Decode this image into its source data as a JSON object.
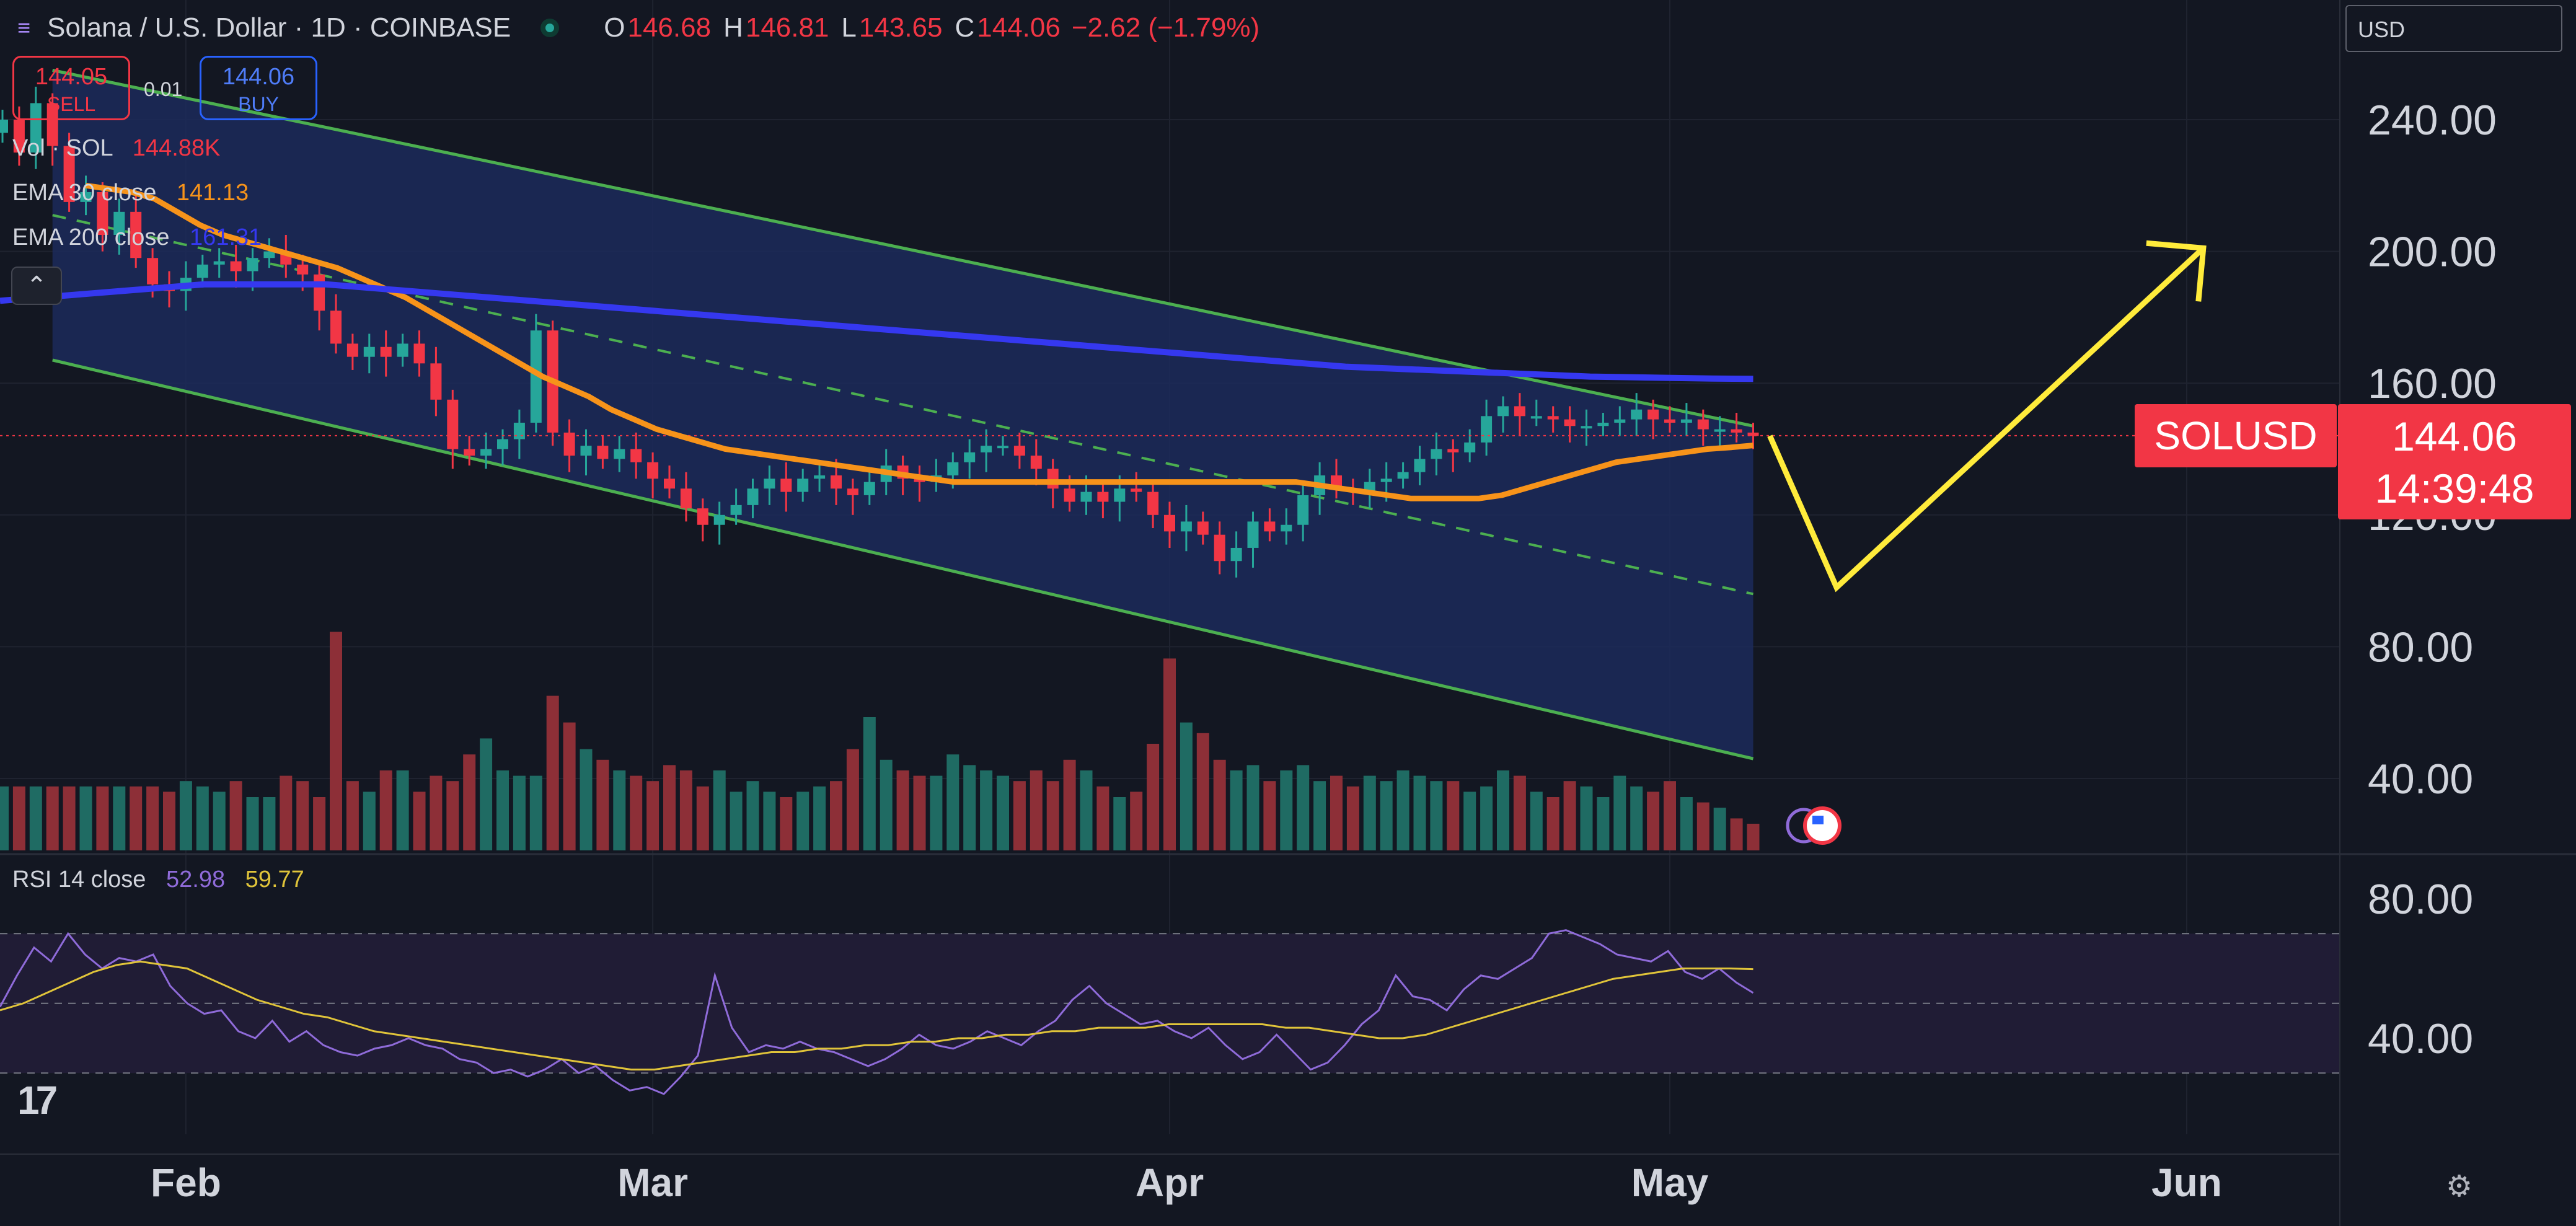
{
  "header": {
    "title": "Solana / U.S. Dollar · 1D · COINBASE",
    "symbol_icon": "solana-logo-icon",
    "o_label": "O",
    "o_value": "146.68",
    "h_label": "H",
    "h_value": "146.81",
    "l_label": "L",
    "l_value": "143.65",
    "c_label": "C",
    "c_value": "144.06",
    "change": "−2.62 (−1.79%)"
  },
  "trade": {
    "sell_price": "144.05",
    "sell_label": "SELL",
    "spread": "0.01",
    "buy_price": "144.06",
    "buy_label": "BUY"
  },
  "legends": {
    "vol_label": "Vol · SOL",
    "vol_value": "144.88K",
    "ema30_label": "EMA 30 close",
    "ema30_value": "141.13",
    "ema200_label": "EMA 200 close",
    "ema200_value": "161.31",
    "rsi_label": "RSI 14 close",
    "rsi_value": "52.98",
    "rsi_ma_value": "59.77"
  },
  "currency": "USD",
  "symbol_tag": "SOLUSD",
  "price_tag": {
    "price": "144.06",
    "countdown": "14:39:48"
  },
  "colors": {
    "background": "#131722",
    "up": "#26a69a",
    "down": "#f23645",
    "ema30": "#f7931a",
    "ema200": "#3538f0",
    "channel": "#4caf50",
    "channel_fill": "#1c2a5a",
    "projection": "#ffeb3b",
    "rsi": "#8f6bd9",
    "rsi_ma": "#e0c43a"
  },
  "chart_data": [
    {
      "type": "candlestick",
      "title": "Solana / U.S. Dollar · 1D · COINBASE",
      "x_start": "2025-01-21",
      "x_end": "2025-05-07",
      "xticks": [
        "Feb",
        "Mar",
        "Apr",
        "May",
        "Jun"
      ],
      "y_ticks": [
        "240.00",
        "200.00",
        "160.00",
        "120.00",
        "80.00",
        "40.00"
      ],
      "ylim": [
        20,
        260
      ],
      "closes": [
        240,
        230,
        245,
        232,
        215,
        218,
        205,
        212,
        198,
        190,
        188,
        192,
        196,
        197,
        194,
        198,
        200,
        196,
        193,
        182,
        172,
        168,
        171,
        168,
        172,
        166,
        155,
        140,
        138,
        140,
        143,
        148,
        176,
        145,
        138,
        141,
        137,
        140,
        136,
        131,
        128,
        122,
        117,
        120,
        123,
        128,
        131,
        127,
        131,
        132,
        128,
        126,
        130,
        135,
        131,
        130,
        132,
        136,
        139,
        141,
        141,
        138,
        134,
        128,
        124,
        127,
        124,
        128,
        127,
        120,
        115,
        118,
        114,
        106,
        110,
        118,
        115,
        117,
        126,
        132,
        128,
        127,
        130,
        131,
        133,
        137,
        140,
        139,
        142,
        150,
        153,
        150,
        150,
        149,
        147,
        147,
        148,
        149,
        152,
        149,
        148,
        149,
        146,
        146,
        145,
        144
      ],
      "ema30": [
        220,
        219,
        218,
        216,
        212,
        208,
        205,
        203,
        201,
        199,
        197,
        195,
        192,
        189,
        186,
        182,
        178,
        174,
        170,
        166,
        162,
        159,
        156,
        152,
        149,
        146,
        144,
        142,
        140,
        139,
        138,
        137,
        136,
        135,
        134,
        133,
        132,
        131,
        130,
        130,
        130,
        130,
        130,
        130,
        130,
        130,
        130,
        130,
        130,
        130,
        130,
        130,
        130,
        130,
        129,
        128,
        127,
        126,
        125,
        125,
        125,
        125,
        126,
        128,
        130,
        132,
        134,
        136,
        137,
        138,
        139,
        140,
        140.5,
        141.1
      ],
      "ema200": [
        185,
        186,
        187,
        188,
        189,
        190,
        190,
        190,
        190,
        189,
        188,
        187,
        186,
        185,
        184,
        183,
        182,
        181,
        180,
        179,
        178,
        177,
        176,
        175,
        174,
        173,
        172,
        171,
        170,
        169,
        168,
        167,
        166,
        165,
        164.5,
        164,
        163.5,
        163,
        162.5,
        162,
        161.8,
        161.6,
        161.4,
        161.31
      ],
      "channel": {
        "upper": [
          [
            3,
            255
          ],
          [
            105,
            147
          ]
        ],
        "lower": [
          [
            3,
            167
          ],
          [
            105,
            46
          ]
        ],
        "mid": [
          [
            3,
            211
          ],
          [
            105,
            96
          ]
        ]
      },
      "projection": [
        [
          "2025-05-07",
          144
        ],
        [
          "2025-05-11",
          98
        ],
        [
          "2025-06-02",
          201
        ]
      ],
      "last_price": 144.06
    },
    {
      "type": "bar",
      "title": "Vol · SOL",
      "last_value": "144.88K",
      "relative_volumes": [
        0.24,
        0.24,
        0.24,
        0.24,
        0.24,
        0.24,
        0.24,
        0.24,
        0.24,
        0.24,
        0.22,
        0.26,
        0.24,
        0.22,
        0.26,
        0.2,
        0.2,
        0.28,
        0.26,
        0.2,
        0.82,
        0.26,
        0.22,
        0.3,
        0.3,
        0.22,
        0.28,
        0.26,
        0.36,
        0.42,
        0.3,
        0.28,
        0.28,
        0.58,
        0.48,
        0.38,
        0.34,
        0.3,
        0.28,
        0.26,
        0.32,
        0.3,
        0.24,
        0.3,
        0.22,
        0.26,
        0.22,
        0.2,
        0.22,
        0.24,
        0.26,
        0.38,
        0.5,
        0.34,
        0.3,
        0.28,
        0.28,
        0.36,
        0.32,
        0.3,
        0.28,
        0.26,
        0.3,
        0.26,
        0.34,
        0.3,
        0.24,
        0.2,
        0.22,
        0.4,
        0.72,
        0.48,
        0.44,
        0.34,
        0.3,
        0.32,
        0.26,
        0.3,
        0.32,
        0.26,
        0.28,
        0.24,
        0.28,
        0.26,
        0.3,
        0.28,
        0.26,
        0.26,
        0.22,
        0.24,
        0.3,
        0.28,
        0.22,
        0.2,
        0.26,
        0.24,
        0.2,
        0.28,
        0.24,
        0.22,
        0.26,
        0.2,
        0.18,
        0.16,
        0.12,
        0.1
      ]
    },
    {
      "type": "line",
      "title": "RSI 14 close",
      "y_ticks": [
        "80.00",
        "40.00"
      ],
      "ylim": [
        20,
        100
      ],
      "bands": [
        70,
        50,
        30
      ],
      "rsi": [
        49,
        58,
        66,
        62,
        70,
        64,
        60,
        63,
        62,
        64,
        55,
        50,
        47,
        48,
        42,
        40,
        45,
        39,
        42,
        38,
        36,
        35,
        37,
        38,
        40,
        38,
        37,
        34,
        33,
        30,
        31,
        29,
        31,
        34,
        30,
        32,
        28,
        25,
        26,
        24,
        29,
        35,
        58,
        43,
        36,
        38,
        37,
        39,
        37,
        36,
        34,
        32,
        34,
        37,
        41,
        38,
        37,
        39,
        42,
        40,
        38,
        42,
        45,
        51,
        55,
        50,
        47,
        44,
        45,
        42,
        40,
        43,
        38,
        34,
        36,
        41,
        36,
        31,
        33,
        38,
        44,
        48,
        58,
        52,
        51,
        48,
        54,
        58,
        57,
        60,
        63,
        70,
        71,
        69,
        67,
        64,
        63,
        62,
        65,
        59,
        57,
        60,
        56,
        53
      ],
      "rsi_ma": [
        48,
        50,
        53,
        56,
        59,
        61,
        62,
        61,
        60,
        57,
        54,
        51,
        49,
        47,
        46,
        44,
        42,
        41,
        40,
        39,
        38,
        37,
        36,
        35,
        34,
        33,
        32,
        31,
        31,
        32,
        33,
        34,
        35,
        36,
        36,
        37,
        37,
        38,
        38,
        39,
        39,
        40,
        40,
        41,
        41,
        42,
        42,
        43,
        43,
        43,
        44,
        44,
        44,
        44,
        44,
        43,
        43,
        42,
        41,
        40,
        40,
        41,
        43,
        45,
        47,
        49,
        51,
        53,
        55,
        57,
        58,
        59,
        60,
        60,
        60,
        59.8
      ]
    }
  ]
}
